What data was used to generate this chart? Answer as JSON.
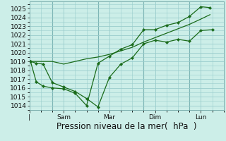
{
  "bg_color": "#cceee8",
  "grid_color": "#99cccc",
  "line_color": "#1a6b1a",
  "marker_color": "#1a6b1a",
  "xlabel_text": "Pression niveau de la mer(  hPa  )",
  "ylim": [
    1013.5,
    1025.8
  ],
  "yticks": [
    1014,
    1015,
    1016,
    1017,
    1018,
    1019,
    1020,
    1021,
    1022,
    1023,
    1024,
    1025
  ],
  "xtick_labels": [
    "|",
    "Sam",
    "Mar",
    "Dim",
    "Lun"
  ],
  "xtick_positions": [
    0,
    1.5,
    3.5,
    5.5,
    7.5
  ],
  "xlim": [
    0,
    8.5
  ],
  "line1_x": [
    0.05,
    0.3,
    0.6,
    1.0,
    1.5,
    2.0,
    2.5,
    3.0,
    3.5,
    4.0,
    4.5,
    5.0,
    5.5,
    6.0,
    6.5,
    7.0,
    7.5,
    8.0
  ],
  "line1_y": [
    1019.0,
    1018.8,
    1018.7,
    1016.6,
    1016.1,
    1015.6,
    1014.8,
    1013.85,
    1017.2,
    1018.7,
    1019.4,
    1021.0,
    1021.4,
    1021.2,
    1021.5,
    1021.3,
    1022.5,
    1022.6
  ],
  "line2_x": [
    0.05,
    0.3,
    0.6,
    1.0,
    1.5,
    2.0,
    2.5,
    3.0,
    3.5,
    4.0,
    4.5,
    5.0,
    5.5,
    6.0,
    6.5,
    7.0,
    7.5,
    7.9
  ],
  "line2_y": [
    1019.0,
    1016.7,
    1016.2,
    1016.0,
    1015.9,
    1015.4,
    1014.0,
    1018.8,
    1019.6,
    1020.4,
    1020.9,
    1022.6,
    1022.6,
    1023.1,
    1023.4,
    1024.1,
    1025.2,
    1025.1
  ],
  "line3_x": [
    0.05,
    0.5,
    1.0,
    1.5,
    2.0,
    2.5,
    3.0,
    3.5,
    4.0,
    4.5,
    5.0,
    5.5,
    6.0,
    6.5,
    7.0,
    7.5,
    7.9
  ],
  "line3_y": [
    1019.0,
    1019.0,
    1019.0,
    1018.7,
    1019.0,
    1019.3,
    1019.5,
    1019.8,
    1020.2,
    1020.6,
    1021.2,
    1021.7,
    1022.2,
    1022.7,
    1023.2,
    1023.8,
    1024.3
  ],
  "vline_x": [
    1.0,
    3.0,
    5.0,
    7.0
  ],
  "title_fontsize": 8,
  "tick_fontsize": 6.5,
  "xlabel_fontsize": 8.5
}
